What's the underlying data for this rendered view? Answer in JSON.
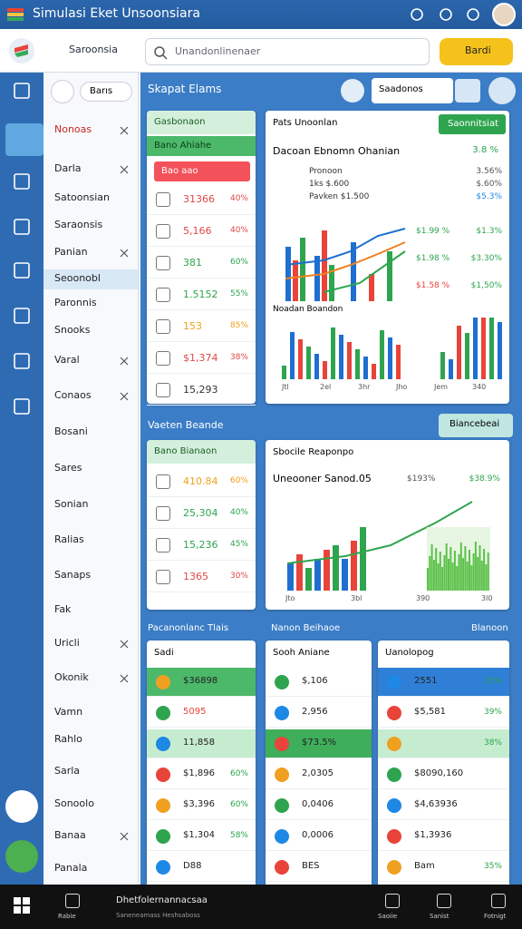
{
  "window": {
    "title": "Simulasi Eket Unsoonsiara"
  },
  "toolbar": {
    "brand": "Saroonsia",
    "search": "Unandonlinenaer",
    "button": "Bardi"
  },
  "sidebar": {
    "filter": "Barıs",
    "items": [
      {
        "label": "Nonoas",
        "close": true
      },
      {
        "label": "Darla",
        "close": true
      },
      {
        "label": "Satoonsian",
        "close": false
      },
      {
        "label": "Saraonsis",
        "close": false
      },
      {
        "label": "Panian",
        "close": true
      },
      {
        "label": "Seoonobl",
        "close": false
      },
      {
        "label": "Paronnis",
        "close": false
      },
      {
        "label": "Snooks",
        "close": false
      },
      {
        "label": "Varal",
        "close": true
      },
      {
        "label": "Conaos",
        "close": true
      },
      {
        "label": "Bosani",
        "close": false
      },
      {
        "label": "Sares",
        "close": false
      },
      {
        "label": "Sonian",
        "close": false
      },
      {
        "label": "Ralias",
        "close": false
      },
      {
        "label": "Sanaps",
        "close": false
      },
      {
        "label": "Fak",
        "close": false
      },
      {
        "label": "Uricli",
        "close": true
      },
      {
        "label": "Okonik",
        "close": true
      },
      {
        "label": "Vamn",
        "close": false
      },
      {
        "label": "Rahlo",
        "close": false
      },
      {
        "label": "Sarla",
        "close": false
      },
      {
        "label": "Sonoolo",
        "close": false
      },
      {
        "label": "Banaa",
        "close": true
      },
      {
        "label": "Panala",
        "close": false
      }
    ]
  },
  "main": {
    "title": "Skapat Elams",
    "dropdown": "Saadonos",
    "panel1": {
      "list": {
        "title": "Gasbonaon",
        "subtitle": "Bano Ahiahe",
        "pill": "Bao    aao",
        "rows": [
          {
            "value": "31366",
            "change": "40%",
            "color": "#e04848"
          },
          {
            "value": "5,166",
            "change": "40%",
            "color": "#e04848"
          },
          {
            "value": "381",
            "change": "60%",
            "color": "#2ea44f"
          },
          {
            "value": "1.5152",
            "change": "55%",
            "color": "#2ea44f"
          },
          {
            "value": "153",
            "change": "85%",
            "color": "#f0a020"
          },
          {
            "value": "$1,374",
            "change": "38%",
            "color": "#e04848"
          },
          {
            "value": "15,293",
            "change": "",
            "color": "#333333"
          }
        ]
      },
      "chart": {
        "title": "Pats Unoonlan",
        "button": "Saonnitsiat",
        "subtitle": "Dacoan Ebnomn Ohanian",
        "subtitle_value": "3.8 %",
        "stats": [
          [
            "Pronoon",
            "3.56%"
          ],
          [
            "1ks    $.600",
            "$.60%"
          ],
          [
            "Pavken    $1.500",
            "$5.3%"
          ]
        ],
        "series_labels": [
          [
            "$1.99 %",
            "$1.3%"
          ],
          [
            "$1.98 %",
            "$3.30%"
          ],
          [
            "$1.58 %",
            "$1,50%"
          ]
        ],
        "sub_title": "Noadan Boandon",
        "x_labels": [
          "Jtl",
          "2el",
          "3hr",
          "Jho",
          "Jem",
          "340"
        ]
      }
    },
    "panel2": {
      "title": "Vaeten Beande",
      "button": "Biancebeai",
      "list": {
        "title": "Bano Bianaon",
        "rows": [
          {
            "value": "410.84",
            "change": "60%",
            "color": "#f0a020"
          },
          {
            "value": "25,304",
            "change": "40%",
            "color": "#2ea44f"
          },
          {
            "value": "15,236",
            "change": "45%",
            "color": "#2ea44f"
          },
          {
            "value": "1365",
            "change": "30%",
            "color": "#e04848"
          }
        ]
      },
      "chart": {
        "title": "Sbocile Reaponpo",
        "subtitle": "Uneooner Sanod.05",
        "value1": "$193%",
        "value2": "$38.9%",
        "x_labels": [
          "Jto",
          "3bl",
          "390",
          "3l0"
        ]
      }
    },
    "panel3": {
      "titles": [
        "Pacanonlanc Tlais",
        "Nanon Beihaoe",
        "Blanoon"
      ],
      "cards": [
        {
          "title": "Sadi",
          "rows": [
            [
              "$36898",
              ""
            ],
            [
              "5095",
              ""
            ],
            [
              "11,858",
              ""
            ],
            [
              "$1,896",
              "60%"
            ],
            [
              "$3,396",
              "60%"
            ],
            [
              "$1,304",
              "58%"
            ],
            [
              "D88",
              ""
            ]
          ]
        },
        {
          "title": "Sooh Aniane",
          "rows": [
            [
              "$,106",
              ""
            ],
            [
              "2,956",
              ""
            ],
            [
              "$73.5%",
              ""
            ],
            [
              "2,0305",
              ""
            ],
            [
              "0,0406",
              ""
            ],
            [
              "0,0006",
              ""
            ],
            [
              "BES",
              ""
            ]
          ]
        },
        {
          "title": "Uanolopog",
          "rows": [
            [
              "2551",
              "33%"
            ],
            [
              "$5,581",
              "39%"
            ],
            [
              "",
              "38%"
            ],
            [
              "$8090,160",
              ""
            ],
            [
              "$4,63936",
              ""
            ],
            [
              "$1,3936",
              ""
            ],
            [
              "Bam",
              "35%"
            ]
          ]
        }
      ]
    }
  },
  "taskbar": {
    "items": [
      "Rabie",
      "Saoiie",
      "Sanist",
      "Fotnigt"
    ],
    "app": "Dhetfolernannacsaa",
    "app_sub": "Saneneamass Heshsaboss"
  }
}
